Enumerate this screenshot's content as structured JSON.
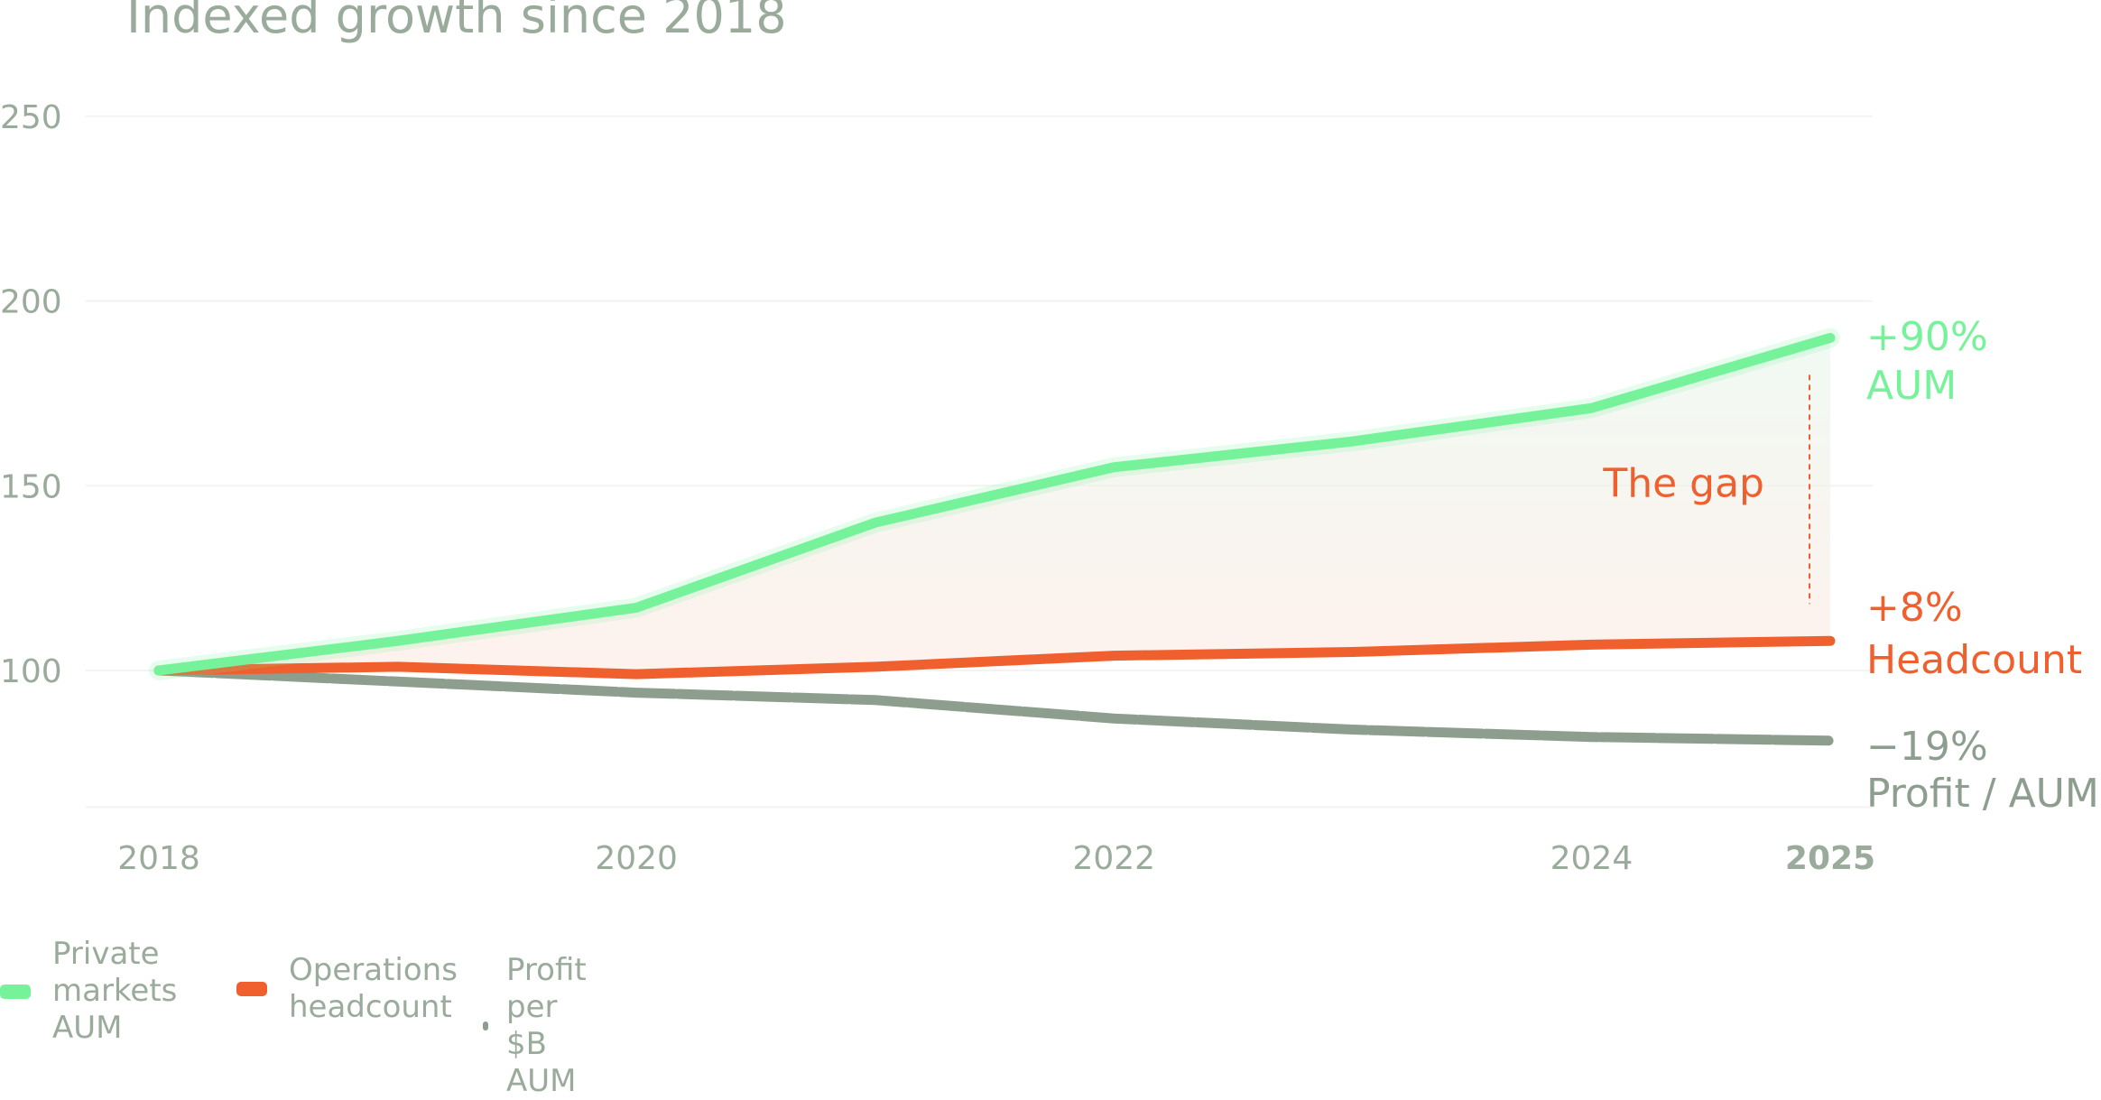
{
  "chart_data": {
    "type": "line",
    "title": "Indexed growth since 2018",
    "x": [
      2018,
      2019,
      2020,
      2021,
      2022,
      2023,
      2024,
      2025
    ],
    "x_ticks": [
      "2018",
      "2020",
      "2022",
      "2024",
      "2025"
    ],
    "y_ticks": [
      "100",
      "150",
      "200",
      "250"
    ],
    "ylim": [
      60,
      250
    ],
    "grid": true,
    "legend_position": "bottom-left",
    "series": [
      {
        "name": "Private markets AUM",
        "color": "#76f39a",
        "values": [
          100,
          108,
          117,
          140,
          155,
          162,
          171,
          190
        ],
        "end_value": "+90%",
        "end_label": "AUM"
      },
      {
        "name": "Operations headcount",
        "color": "#f05f2e",
        "values": [
          100,
          101,
          99,
          101,
          104,
          105,
          107,
          108
        ],
        "end_value": "+8%",
        "end_label": "Headcount"
      },
      {
        "name": "Profit per $B AUM",
        "color": "#8d9e8f",
        "values": [
          100,
          97,
          94,
          92,
          87,
          84,
          82,
          81
        ],
        "end_value": "−19%",
        "end_label": "Profit / AUM"
      }
    ],
    "annotation": "The gap"
  },
  "legend": [
    {
      "label": "Private\nmarkets\nAUM",
      "color": "#76f39a"
    },
    {
      "label": "Operations\nheadcount",
      "color": "#f05f2e"
    },
    {
      "label": "Profit per $B\nAUM",
      "color": "#8d9e8f"
    }
  ]
}
